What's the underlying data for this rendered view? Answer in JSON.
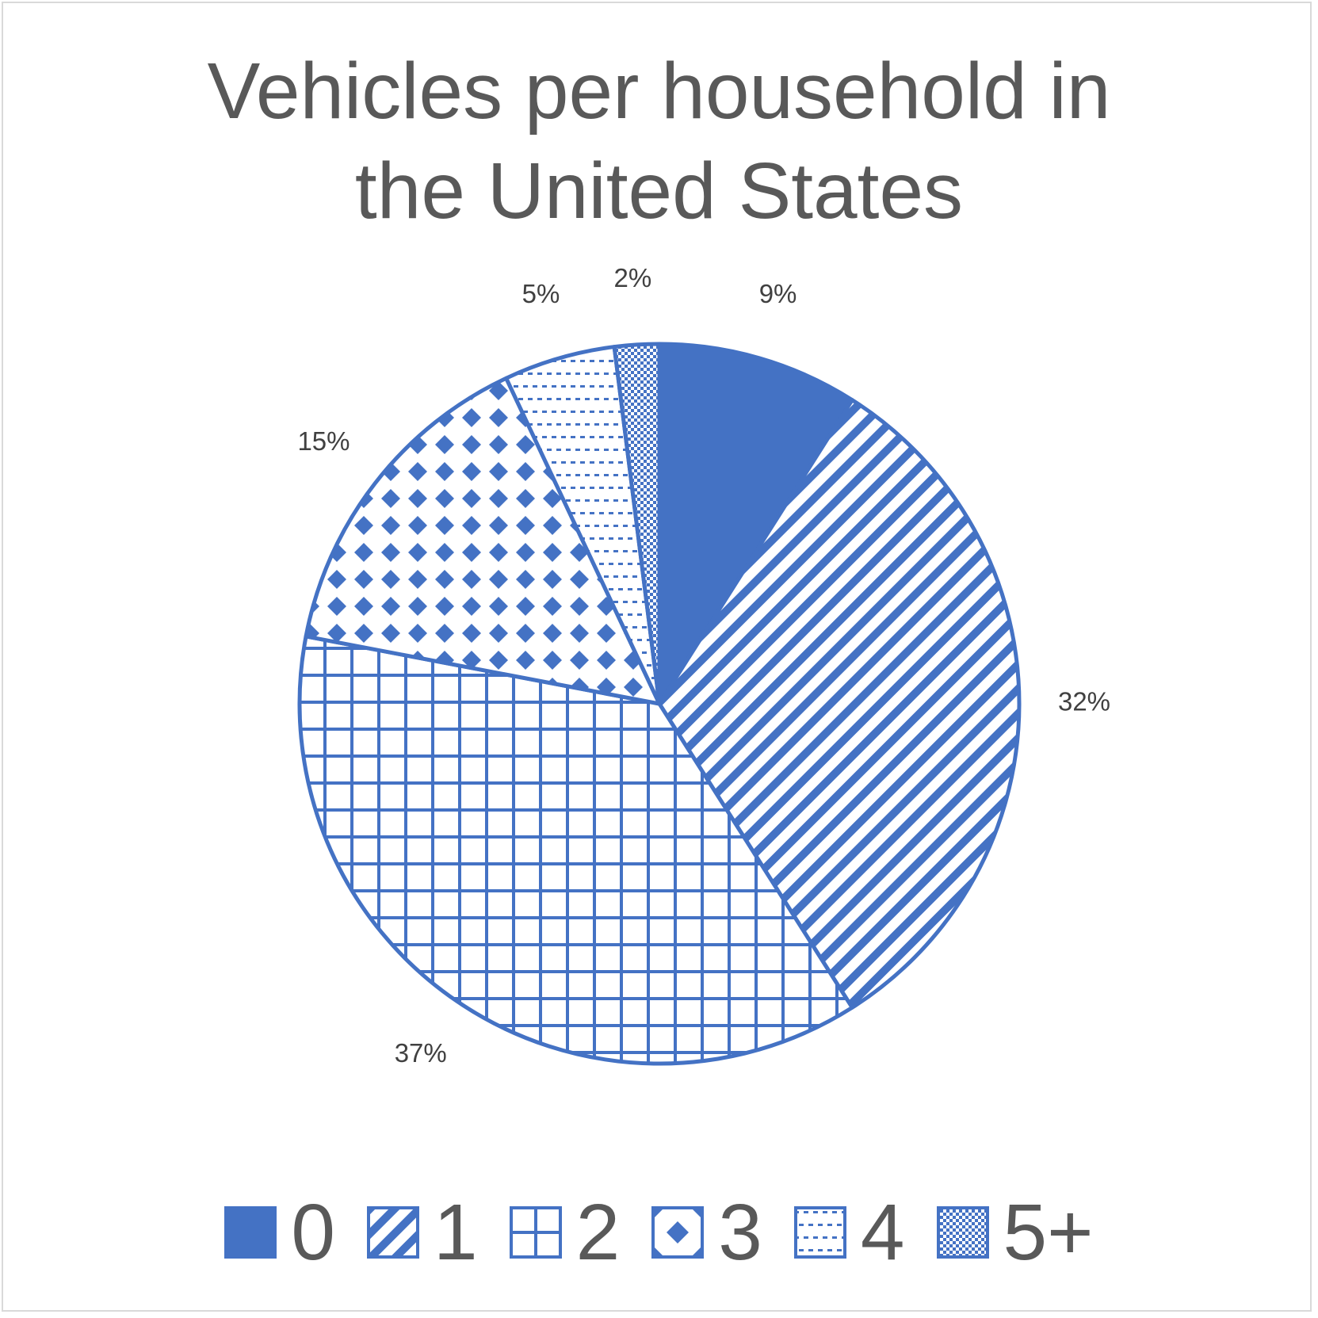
{
  "chart_data": {
    "type": "pie",
    "title": "Vehicles per household in the United States",
    "title_lines": [
      "Vehicles per household in",
      "the United States"
    ],
    "categories": [
      "0",
      "1",
      "2",
      "3",
      "4",
      "5+"
    ],
    "values": [
      9,
      32,
      37,
      15,
      5,
      2
    ],
    "data_labels": [
      "9%",
      "32%",
      "37%",
      "15%",
      "5%",
      "2%"
    ],
    "patterns": [
      "solid",
      "wide-downward-diagonal",
      "large-grid",
      "diamond-dots",
      "dashed-horizontal",
      "checker"
    ],
    "legend_position": "bottom",
    "color": "#4472c4"
  }
}
